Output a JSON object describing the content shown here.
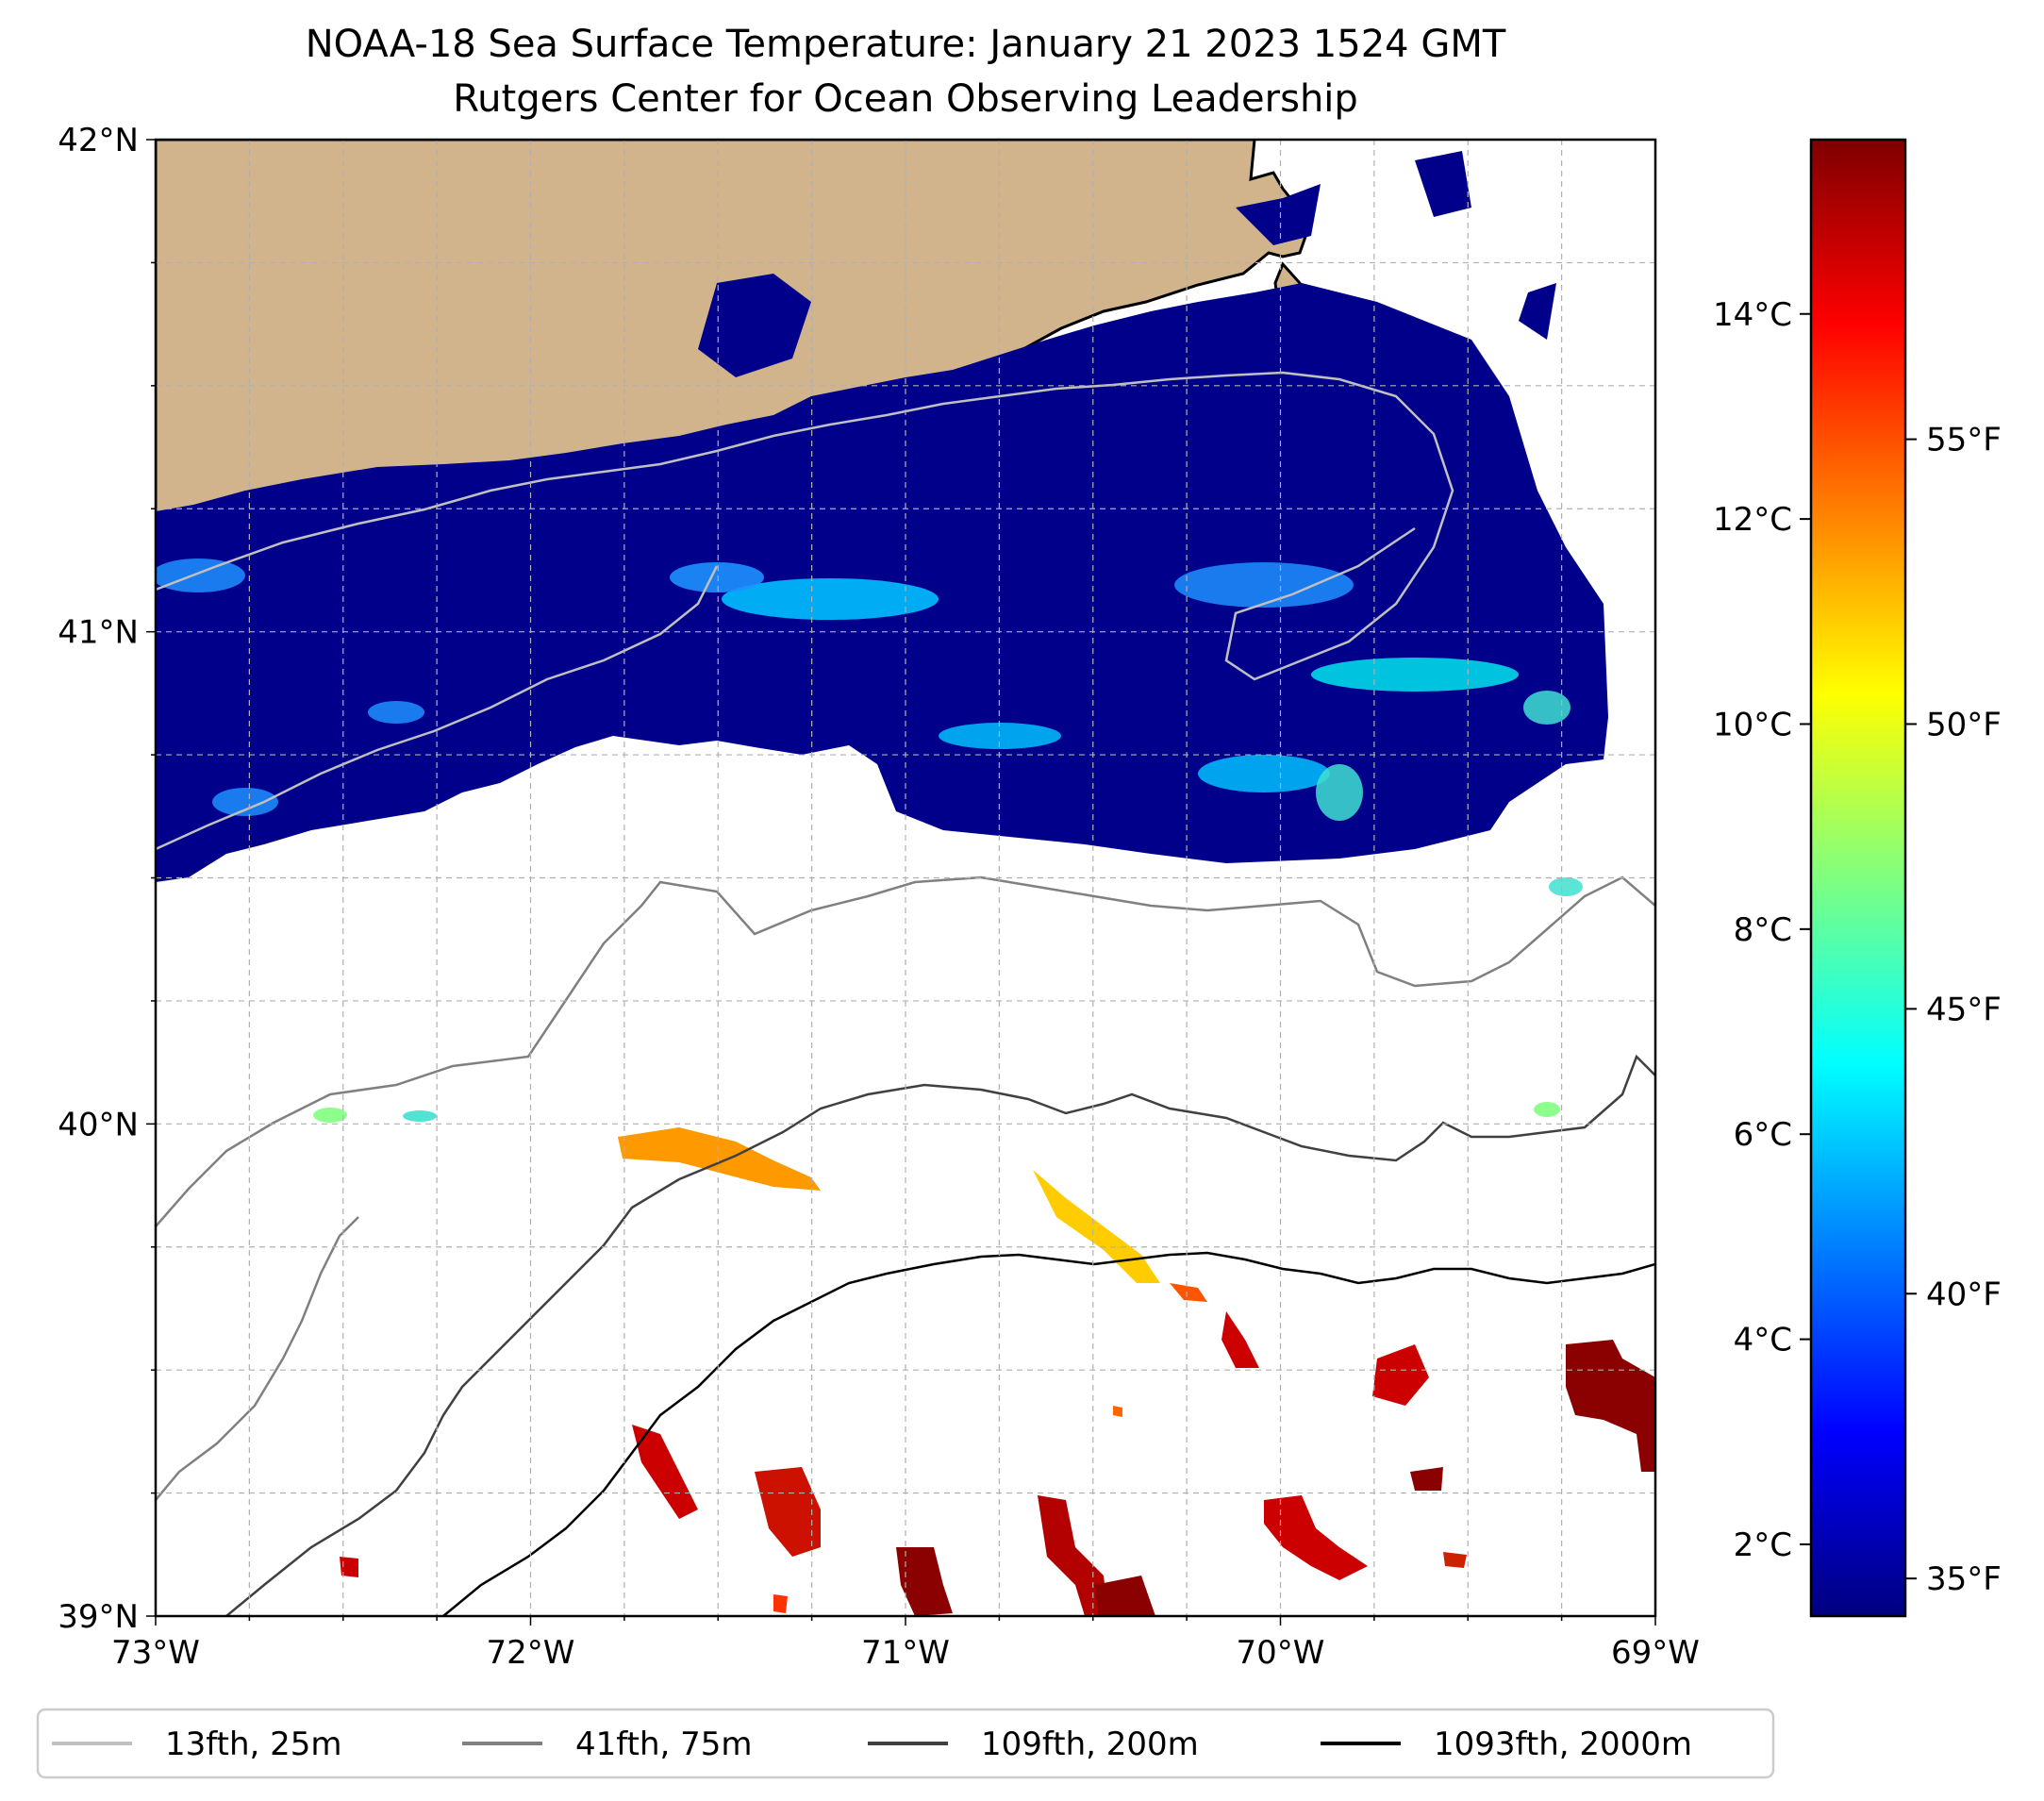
{
  "title": {
    "line1": "NOAA-18 Sea Surface Temperature: January 21 2023 1524 GMT",
    "line2": "Rutgers Center for Ocean Observing Leadership"
  },
  "map": {
    "lon_range": [
      -73,
      -69
    ],
    "lat_range": [
      39,
      42
    ],
    "x_ticks": [
      {
        "value": -73,
        "label": "73°W"
      },
      {
        "value": -72,
        "label": "72°W"
      },
      {
        "value": -71,
        "label": "71°W"
      },
      {
        "value": -70,
        "label": "70°W"
      },
      {
        "value": -69,
        "label": "69°W"
      }
    ],
    "y_ticks": [
      {
        "value": 42,
        "label": "42°N"
      },
      {
        "value": 41,
        "label": "41°N"
      },
      {
        "value": 40,
        "label": "40°N"
      },
      {
        "value": 39,
        "label": "39°N"
      }
    ],
    "minor_step_deg": 0.25,
    "grid": true,
    "colors": {
      "land": "#d2b48c",
      "ocean_no_data": "#ffffff",
      "cold_water": "#00008b",
      "contour_25m": "#c0c0c0",
      "contour_75m": "#808080",
      "contour_200m": "#404040",
      "contour_2000m": "#000000"
    }
  },
  "colorbar": {
    "celsius_ticks": [
      {
        "value": 2,
        "label": "2°C"
      },
      {
        "value": 4,
        "label": "4°C"
      },
      {
        "value": 6,
        "label": "6°C"
      },
      {
        "value": 8,
        "label": "8°C"
      },
      {
        "value": 10,
        "label": "10°C"
      },
      {
        "value": 12,
        "label": "12°C"
      },
      {
        "value": 14,
        "label": "14°C"
      }
    ],
    "fahrenheit_ticks": [
      {
        "value": 35,
        "label": "35°F"
      },
      {
        "value": 40,
        "label": "40°F"
      },
      {
        "value": 45,
        "label": "45°F"
      },
      {
        "value": 50,
        "label": "50°F"
      },
      {
        "value": 55,
        "label": "55°F"
      }
    ],
    "range_c": [
      1.3,
      15.7
    ],
    "colormap": "jet",
    "colormap_stops": [
      "#00007f",
      "#0000ff",
      "#007fff",
      "#00ffff",
      "#7fff7f",
      "#ffff00",
      "#ff7f00",
      "#ff0000",
      "#7f0000"
    ]
  },
  "legend": {
    "placement": "bottom-center",
    "items": [
      {
        "label": "13fth, 25m",
        "color": "#c0c0c0"
      },
      {
        "label": "41fth, 75m",
        "color": "#808080"
      },
      {
        "label": "109fth, 200m",
        "color": "#404040"
      },
      {
        "label": "1093fth, 2000m",
        "color": "#000000"
      }
    ]
  }
}
